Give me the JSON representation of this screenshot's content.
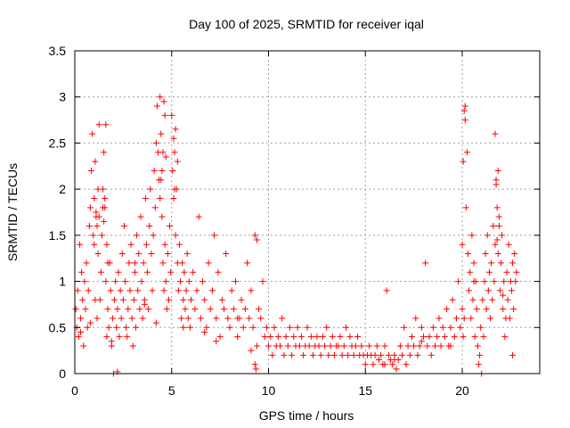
{
  "chart_data": {
    "type": "scatter",
    "title": "Day 100 of 2025, SRMTID for receiver iqal",
    "xlabel": "GPS time / hours",
    "ylabel": "SRMTID / TECUs",
    "xlim": [
      0,
      24
    ],
    "ylim": [
      0,
      3.5
    ],
    "xticks": [
      0,
      5,
      10,
      15,
      20
    ],
    "xtick_labels": [
      "0",
      "5",
      "10",
      "15",
      "20"
    ],
    "yticks": [
      0,
      0.5,
      1,
      1.5,
      2,
      2.5,
      3,
      3.5
    ],
    "ytick_labels": [
      "0",
      "0.5",
      "1",
      "1.5",
      "2",
      "2.5",
      "3",
      "3.5"
    ],
    "grid": true,
    "marker": "+",
    "color": "#ff0000",
    "series": [
      {
        "name": "SRMTID",
        "x": [
          0.05,
          0.1,
          0.15,
          0.2,
          0.25,
          0.3,
          0.35,
          0.4,
          0.45,
          0.5,
          0.55,
          0.6,
          0.65,
          0.7,
          0.75,
          0.8,
          0.85,
          0.9,
          0.95,
          1.0,
          1.05,
          1.1,
          1.15,
          1.2,
          1.25,
          1.3,
          1.35,
          1.4,
          1.45,
          1.5,
          1.55,
          1.6,
          1.65,
          1.7,
          1.75,
          1.8,
          1.85,
          1.9,
          1.95,
          2.0,
          2.05,
          2.1,
          2.15,
          2.2,
          2.25,
          2.3,
          2.35,
          2.4,
          2.45,
          2.5,
          2.55,
          2.6,
          2.65,
          2.7,
          2.75,
          2.8,
          2.85,
          2.9,
          2.95,
          3.0,
          3.05,
          3.1,
          3.15,
          3.2,
          3.25,
          3.3,
          3.35,
          3.4,
          3.45,
          3.5,
          3.55,
          3.6,
          3.65,
          3.7,
          3.75,
          3.8,
          3.85,
          3.9,
          3.95,
          4.0,
          4.05,
          4.1,
          4.15,
          4.2,
          4.25,
          4.3,
          4.35,
          4.4,
          4.45,
          4.5,
          4.55,
          4.6,
          4.65,
          4.7,
          4.75,
          4.8,
          4.85,
          4.9,
          4.95,
          5.0,
          5.05,
          5.1,
          5.15,
          5.2,
          5.25,
          5.3,
          5.35,
          5.4,
          5.45,
          5.5,
          5.55,
          5.6,
          5.65,
          5.7,
          5.75,
          5.8,
          5.85,
          5.9,
          5.95,
          6.0,
          6.1,
          6.2,
          6.3,
          6.4,
          6.5,
          6.6,
          6.7,
          6.8,
          6.9,
          7.0,
          7.1,
          7.2,
          7.3,
          7.4,
          7.5,
          7.6,
          7.7,
          7.8,
          7.9,
          8.0,
          8.1,
          8.2,
          8.3,
          8.4,
          8.5,
          8.6,
          8.7,
          8.8,
          8.9,
          9.0,
          9.1,
          9.2,
          9.3,
          9.4,
          9.5,
          9.6,
          9.7,
          9.8,
          9.9,
          10.0,
          10.1,
          10.2,
          10.3,
          10.4,
          10.5,
          10.6,
          10.7,
          10.8,
          10.9,
          11.0,
          11.1,
          11.2,
          11.3,
          11.4,
          11.5,
          11.6,
          11.7,
          11.8,
          11.9,
          12.0,
          12.1,
          12.2,
          12.3,
          12.4,
          12.5,
          12.6,
          12.7,
          12.8,
          12.9,
          13.0,
          13.1,
          13.2,
          13.3,
          13.4,
          13.5,
          13.6,
          13.7,
          13.8,
          13.9,
          14.0,
          14.1,
          14.2,
          14.3,
          14.4,
          14.5,
          14.6,
          14.7,
          14.8,
          14.9,
          15.0,
          15.1,
          15.2,
          15.3,
          15.4,
          15.5,
          15.6,
          15.7,
          15.8,
          15.9,
          16.0,
          16.1,
          16.2,
          16.3,
          16.4,
          16.5,
          16.6,
          16.7,
          16.8,
          16.9,
          17.0,
          17.1,
          17.2,
          17.3,
          17.4,
          17.5,
          17.6,
          17.7,
          17.8,
          17.9,
          18.0,
          18.1,
          18.2,
          18.3,
          18.4,
          18.5,
          18.6,
          18.7,
          18.8,
          18.9,
          19.0,
          19.1,
          19.2,
          19.3,
          19.4,
          19.5,
          19.6,
          19.7,
          19.8,
          19.9,
          20.0,
          20.05,
          20.1,
          20.15,
          20.2,
          20.25,
          20.3,
          20.35,
          20.4,
          20.45,
          20.5,
          20.55,
          20.6,
          20.65,
          20.7,
          20.75,
          20.8,
          20.85,
          20.9,
          20.95,
          21.0,
          21.05,
          21.1,
          21.15,
          21.2,
          21.25,
          21.3,
          21.35,
          21.4,
          21.45,
          21.5,
          21.55,
          21.6,
          21.65,
          21.7,
          21.75,
          21.8,
          21.85,
          21.9,
          21.95,
          22.0,
          22.05,
          22.1,
          22.15,
          22.2,
          22.25,
          22.3,
          22.35,
          22.4,
          22.45,
          22.5,
          22.55,
          22.6,
          22.65,
          22.7,
          22.75,
          22.8,
          1.0,
          1.05,
          1.1,
          1.15,
          1.2,
          1.25,
          1.45,
          1.5,
          1.55,
          1.6,
          1.65,
          1.7,
          4.4,
          4.45,
          4.5,
          4.55,
          4.6,
          4.65,
          4.7,
          5.1,
          5.15,
          5.2,
          5.3,
          20.0,
          20.05,
          20.1,
          20.15,
          21.7,
          21.75,
          21.8,
          21.85,
          21.9,
          9.3,
          9.35,
          9.4,
          2.2,
          0.3,
          0.8,
          1.9,
          3.1,
          3.6,
          4.2,
          5.6,
          6.7,
          7.3,
          8.4,
          9.1,
          16.0,
          16.5,
          17.9,
          19.4,
          20.6,
          22.1,
          22.6
        ],
        "y": [
          0.7,
          0.5,
          0.9,
          0.4,
          1.4,
          0.6,
          1.1,
          0.8,
          0.3,
          1.0,
          0.7,
          1.2,
          0.5,
          0.9,
          1.6,
          1.8,
          2.2,
          2.6,
          1.5,
          1.9,
          2.3,
          1.7,
          0.6,
          1.3,
          2.7,
          0.8,
          1.1,
          1.5,
          2.0,
          2.4,
          1.8,
          1.0,
          0.4,
          0.7,
          0.5,
          1.2,
          0.9,
          0.3,
          0.6,
          0.0,
          0.8,
          1.0,
          0.5,
          0.7,
          1.1,
          0.4,
          0.9,
          0.6,
          1.3,
          0.8,
          1.6,
          1.0,
          0.5,
          0.4,
          0.7,
          1.2,
          0.9,
          1.4,
          0.6,
          0.3,
          0.8,
          1.1,
          0.5,
          1.5,
          0.9,
          1.3,
          0.7,
          1.7,
          1.0,
          0.6,
          1.2,
          0.8,
          1.9,
          1.4,
          1.1,
          0.7,
          1.6,
          2.0,
          1.3,
          0.9,
          1.5,
          2.2,
          1.8,
          2.5,
          2.9,
          2.4,
          2.1,
          3.0,
          2.6,
          1.7,
          1.2,
          0.9,
          1.4,
          1.0,
          0.7,
          1.3,
          0.8,
          1.6,
          1.1,
          2.8,
          2.2,
          1.9,
          2.4,
          1.5,
          2.0,
          1.2,
          0.9,
          1.4,
          1.0,
          0.6,
          1.2,
          0.8,
          1.1,
          0.7,
          0.9,
          1.3,
          0.6,
          1.0,
          0.5,
          0.8,
          1.1,
          0.7,
          0.9,
          1.7,
          0.6,
          1.0,
          0.8,
          0.5,
          1.2,
          0.7,
          0.9,
          1.5,
          0.6,
          1.1,
          0.4,
          0.8,
          0.7,
          1.3,
          0.6,
          0.5,
          0.9,
          0.7,
          1.0,
          0.4,
          0.6,
          0.8,
          0.5,
          0.7,
          1.2,
          0.6,
          0.9,
          0.5,
          1.5,
          0.3,
          0.7,
          0.6,
          1.0,
          0.4,
          0.5,
          0.3,
          0.4,
          0.2,
          0.5,
          0.3,
          0.4,
          0.3,
          0.6,
          0.2,
          0.4,
          0.3,
          0.5,
          0.2,
          0.4,
          0.3,
          0.5,
          0.3,
          0.4,
          0.2,
          0.3,
          0.5,
          0.3,
          0.4,
          0.2,
          0.3,
          0.4,
          0.3,
          0.2,
          0.4,
          0.3,
          0.5,
          0.2,
          0.3,
          0.4,
          0.2,
          0.3,
          0.3,
          0.4,
          0.2,
          0.3,
          0.5,
          0.2,
          0.4,
          0.3,
          0.2,
          0.3,
          0.4,
          0.2,
          0.3,
          0.2,
          0.1,
          0.2,
          0.3,
          0.2,
          0.1,
          0.2,
          0.3,
          0.15,
          0.2,
          0.1,
          0.3,
          0.9,
          0.2,
          0.15,
          0.1,
          0.2,
          0.05,
          0.15,
          0.3,
          0.2,
          0.5,
          0.1,
          0.3,
          0.2,
          0.4,
          0.3,
          0.6,
          0.2,
          0.3,
          0.5,
          0.4,
          1.2,
          0.3,
          0.4,
          0.2,
          0.5,
          0.3,
          0.4,
          0.6,
          0.3,
          0.5,
          0.4,
          0.7,
          0.3,
          0.5,
          0.8,
          0.4,
          0.6,
          1.0,
          0.5,
          0.7,
          0.4,
          0.6,
          2.9,
          1.8,
          2.4,
          1.3,
          0.9,
          1.1,
          0.6,
          1.5,
          0.8,
          1.2,
          0.4,
          1.0,
          0.7,
          0.3,
          0.1,
          0.2,
          0.5,
          0.0,
          0.8,
          0.4,
          1.0,
          1.3,
          0.7,
          1.5,
          0.9,
          1.1,
          0.6,
          1.2,
          0.8,
          1.6,
          1.0,
          1.4,
          2.1,
          1.8,
          1.3,
          1.7,
          0.9,
          1.2,
          1.5,
          0.7,
          1.0,
          0.4,
          0.6,
          1.1,
          0.8,
          1.4,
          0.6,
          1.0,
          0.9,
          1.2,
          0.7,
          1.3,
          1.0,
          1.1,
          1.4,
          0.8,
          1.75,
          1.6,
          2.0,
          1.7,
          1.8,
          1.65,
          1.9,
          2.7,
          1.4,
          1.2,
          1.9,
          2.1,
          2.2,
          2.4,
          2.95,
          2.8,
          2.35,
          2.55,
          2.0,
          2.65,
          2.3,
          1.4,
          2.3,
          2.85,
          2.75,
          2.6,
          2.05,
          1.45,
          2.2,
          1.6,
          0.1,
          0.05,
          1.45,
          0.02,
          0.45,
          0.55,
          0.35,
          1.2,
          0.75,
          0.55,
          0.5,
          0.45,
          0.35,
          0.6,
          0.25,
          0.1,
          0.15,
          0.35,
          0.3,
          1.0,
          0.85,
          0.2
        ]
      }
    ]
  }
}
